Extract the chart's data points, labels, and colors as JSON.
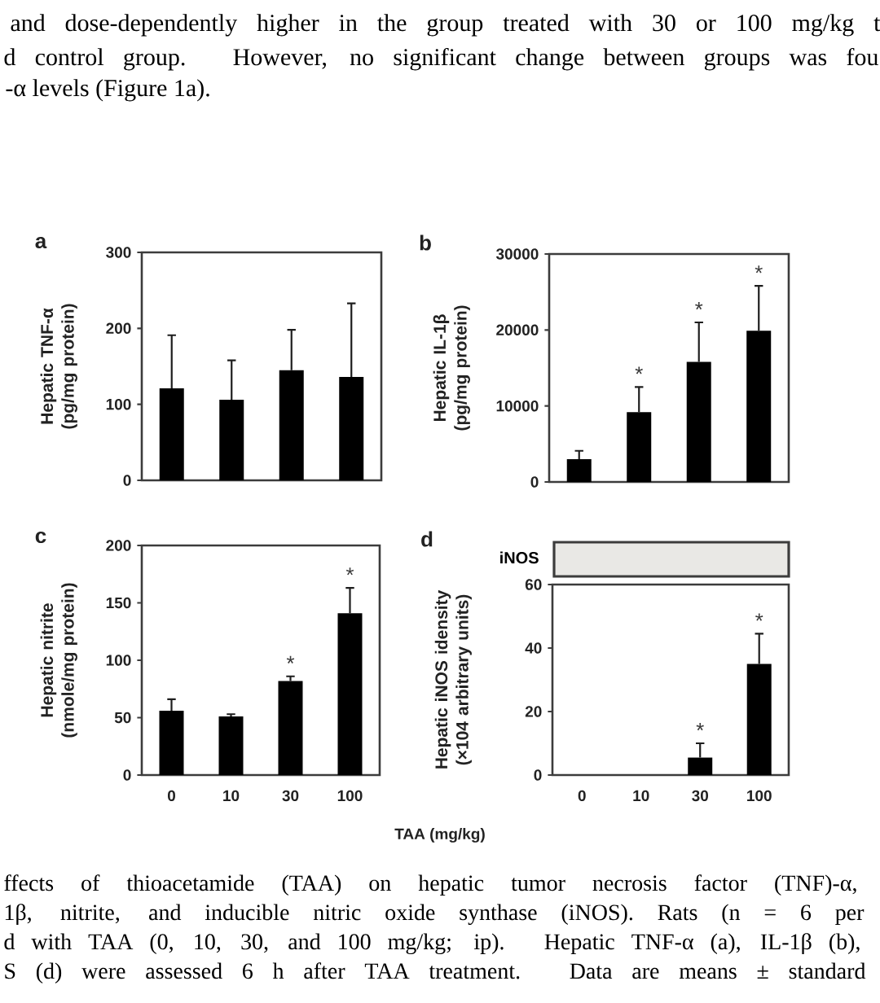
{
  "chart_data": [
    {
      "type": "bar",
      "title": "a",
      "categories": [
        "0",
        "10",
        "30",
        "100"
      ],
      "values": [
        121,
        106,
        145,
        136
      ],
      "errors": [
        [
          121,
          191
        ],
        [
          106,
          158
        ],
        [
          145,
          198
        ],
        [
          136,
          233
        ]
      ],
      "color": "#000000",
      "ylabel": "Hepatic TNF-α (pg/mg protein)",
      "ylim": [
        0,
        300
      ],
      "yticks": [
        0,
        100,
        200,
        300
      ],
      "tick_labels": "y",
      "annotations": [
        "and dose-dependently higher in the group treated with 30 or 100 mg/kg t",
        "d control group. However, no significant change between groups was fou",
        "-α levels (Figure 1a)."
      ]
    },
    {
      "type": "bar",
      "title": "b",
      "categories": [
        "0",
        "10",
        "30",
        "100"
      ],
      "values": [
        3000,
        9200,
        15800,
        19900
      ],
      "errors": [
        [
          3000,
          4100
        ],
        [
          9200,
          12500
        ],
        [
          15800,
          21000
        ],
        [
          19900,
          25800
        ]
      ],
      "color": "#000000",
      "ylabel": "Hepatic IL-1β (pg/mg protein)",
      "ylim": [
        0,
        30000
      ],
      "yticks": [
        0,
        10000,
        20000,
        30000
      ],
      "tick_labels": "y",
      "annotations": [
        "*",
        "*",
        "*"
      ]
    },
    {
      "type": "bar",
      "title": "c",
      "categories": [
        "0",
        "10",
        "30",
        "100"
      ],
      "values": [
        56,
        51,
        82,
        141
      ],
      "errors": [
        [
          56,
          66
        ],
        [
          51,
          53
        ],
        [
          82,
          86
        ],
        [
          141,
          163
        ]
      ],
      "color": "#000000",
      "xlabel": "TAA (mg/kg)",
      "ylabel": "Hepatic nitrite (nmole/mg protein)",
      "ylim": [
        0,
        200
      ],
      "yticks": [
        0,
        50,
        100,
        150,
        200
      ],
      "annotations": [
        "*",
        "*"
      ]
    },
    {
      "type": "bar",
      "title": "d",
      "categories": [
        "0",
        "10",
        "30",
        "100"
      ],
      "values": [
        0,
        0,
        5.5,
        35
      ],
      "errors": [
        null,
        null,
        [
          5.5,
          10
        ],
        [
          35,
          44.5
        ]
      ],
      "color": "#000000",
      "ylabel": "Hepatic iNOS idensity (×104 arbitrary units)",
      "ylim": [
        0,
        60
      ],
      "yticks": [
        0,
        20,
        40,
        60
      ],
      "annotations": [
        "*",
        "*",
        "iNOS",
        "ffects of thioacetamide (TAA) on hepatic tumor necrosis factor (TNF)-α,",
        "1β, nitrite, and inducible nitric oxide synthase (iNOS). Rats (n = 6 per",
        "d with TAA (0, 10, 30, and 100 mg/kg; ip). Hepatic TNF-α (a), IL-1β (b),",
        "S (d) were assessed 6 h after TAA treatment. Data are means ± standard"
      ]
    }
  ]
}
